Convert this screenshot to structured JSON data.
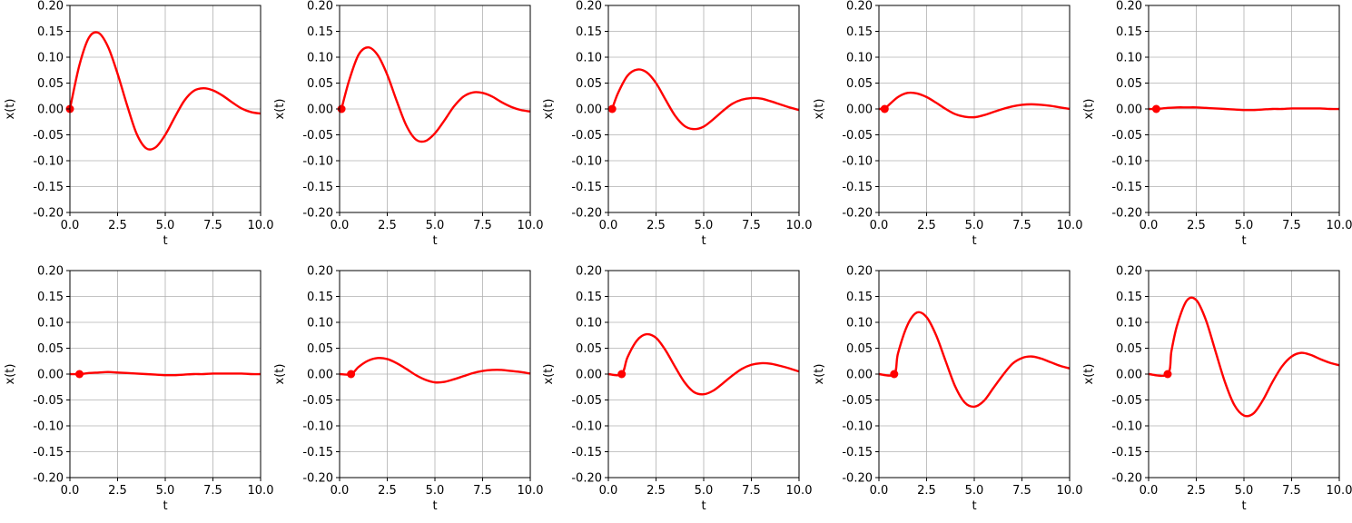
{
  "figure": {
    "background": "#ffffff",
    "line_color": "#ff0000",
    "grid_color": "#b0b0b0",
    "rows": 2,
    "cols": 5
  },
  "chart_data": [
    {
      "type": "line",
      "xlabel": "t",
      "ylabel": "x(t)",
      "xlim": [
        0,
        10
      ],
      "ylim": [
        -0.2,
        0.2
      ],
      "grid": true,
      "xticks": [
        "0.0",
        "2.5",
        "5.0",
        "7.5",
        "10.0"
      ],
      "yticks": [
        "0.20",
        "0.15",
        "0.10",
        "0.05",
        "0.00",
        "-0.05",
        "-0.10",
        "-0.15",
        "-0.20"
      ],
      "x": [
        0,
        0.5,
        1.0,
        1.5,
        2.0,
        2.5,
        3.0,
        3.5,
        4.0,
        4.5,
        5.0,
        5.5,
        6.0,
        6.5,
        7.0,
        7.5,
        8.0,
        8.5,
        9.0,
        9.5,
        10.0
      ],
      "y": [
        0.0,
        0.085,
        0.138,
        0.147,
        0.12,
        0.068,
        0.007,
        -0.048,
        -0.076,
        -0.074,
        -0.05,
        -0.016,
        0.016,
        0.035,
        0.04,
        0.036,
        0.026,
        0.013,
        0.001,
        -0.006,
        -0.009
      ],
      "marker": {
        "x": 0.0,
        "y": 0.0
      }
    },
    {
      "type": "line",
      "xlabel": "t",
      "ylabel": "x(t)",
      "xlim": [
        0,
        10
      ],
      "ylim": [
        -0.2,
        0.2
      ],
      "grid": true,
      "xticks": [
        "0.0",
        "2.5",
        "5.0",
        "7.5",
        "10.0"
      ],
      "yticks": [
        "0.20",
        "0.15",
        "0.10",
        "0.05",
        "0.00",
        "-0.05",
        "-0.10",
        "-0.15",
        "-0.20"
      ],
      "x": [
        0.1,
        0.5,
        1.0,
        1.5,
        2.0,
        2.5,
        3.0,
        3.5,
        4.0,
        4.5,
        5.0,
        5.5,
        6.0,
        6.5,
        7.0,
        7.5,
        8.0,
        8.5,
        9.0,
        9.5,
        10.0
      ],
      "y": [
        0.0,
        0.055,
        0.105,
        0.119,
        0.104,
        0.066,
        0.015,
        -0.032,
        -0.059,
        -0.062,
        -0.047,
        -0.022,
        0.005,
        0.024,
        0.032,
        0.031,
        0.024,
        0.013,
        0.004,
        -0.002,
        -0.005
      ],
      "marker": {
        "x": 0.1,
        "y": 0.0
      }
    },
    {
      "type": "line",
      "xlabel": "t",
      "ylabel": "x(t)",
      "xlim": [
        0,
        10
      ],
      "ylim": [
        -0.2,
        0.2
      ],
      "grid": true,
      "xticks": [
        "0.0",
        "2.5",
        "5.0",
        "7.5",
        "10.0"
      ],
      "yticks": [
        "0.20",
        "0.15",
        "0.10",
        "0.05",
        "0.00",
        "-0.05",
        "-0.10",
        "-0.15",
        "-0.20"
      ],
      "x": [
        0.2,
        0.5,
        1.0,
        1.5,
        2.0,
        2.5,
        3.0,
        3.5,
        4.0,
        4.5,
        5.0,
        5.5,
        6.0,
        6.5,
        7.0,
        7.5,
        8.0,
        8.5,
        9.0,
        9.5,
        10.0
      ],
      "y": [
        0.0,
        0.03,
        0.064,
        0.076,
        0.071,
        0.05,
        0.018,
        -0.013,
        -0.033,
        -0.039,
        -0.034,
        -0.02,
        -0.004,
        0.01,
        0.018,
        0.021,
        0.02,
        0.015,
        0.009,
        0.003,
        -0.002
      ],
      "marker": {
        "x": 0.2,
        "y": 0.0
      }
    },
    {
      "type": "line",
      "xlabel": "t",
      "ylabel": "x(t)",
      "xlim": [
        0,
        10
      ],
      "ylim": [
        -0.2,
        0.2
      ],
      "grid": true,
      "xticks": [
        "0.0",
        "2.5",
        "5.0",
        "7.5",
        "10.0"
      ],
      "yticks": [
        "0.20",
        "0.15",
        "0.10",
        "0.05",
        "0.00",
        "-0.05",
        "-0.10",
        "-0.15",
        "-0.20"
      ],
      "x": [
        0.3,
        0.5,
        1.0,
        1.5,
        2.0,
        2.5,
        3.0,
        3.5,
        4.0,
        4.5,
        5.0,
        5.5,
        6.0,
        6.5,
        7.0,
        7.5,
        8.0,
        8.5,
        9.0,
        9.5,
        10.0
      ],
      "y": [
        0.0,
        0.007,
        0.023,
        0.031,
        0.03,
        0.023,
        0.012,
        0.0,
        -0.01,
        -0.015,
        -0.016,
        -0.012,
        -0.006,
        0.0,
        0.005,
        0.008,
        0.009,
        0.008,
        0.006,
        0.003,
        0.0
      ],
      "marker": {
        "x": 0.3,
        "y": 0.0
      }
    },
    {
      "type": "line",
      "xlabel": "t",
      "ylabel": "x(t)",
      "xlim": [
        0,
        10
      ],
      "ylim": [
        -0.2,
        0.2
      ],
      "grid": true,
      "xticks": [
        "0.0",
        "2.5",
        "5.0",
        "7.5",
        "10.0"
      ],
      "yticks": [
        "0.20",
        "0.15",
        "0.10",
        "0.05",
        "0.00",
        "-0.05",
        "-0.10",
        "-0.15",
        "-0.20"
      ],
      "x": [
        0.0,
        0.4,
        1.0,
        1.5,
        2.0,
        2.5,
        3.0,
        3.5,
        4.0,
        4.5,
        5.0,
        5.5,
        6.0,
        6.5,
        7.0,
        7.5,
        8.0,
        8.5,
        9.0,
        9.5,
        10.0
      ],
      "y": [
        0.0,
        0.0,
        0.002,
        0.003,
        0.003,
        0.003,
        0.002,
        0.001,
        0.0,
        -0.001,
        -0.002,
        -0.002,
        -0.001,
        0.0,
        0.0,
        0.001,
        0.001,
        0.001,
        0.001,
        0.0,
        0.0
      ],
      "marker": {
        "x": 0.4,
        "y": 0.0
      }
    },
    {
      "type": "line",
      "xlabel": "t",
      "ylabel": "x(t)",
      "xlim": [
        0,
        10
      ],
      "ylim": [
        -0.2,
        0.2
      ],
      "grid": true,
      "xticks": [
        "0.0",
        "2.5",
        "5.0",
        "7.5",
        "10.0"
      ],
      "yticks": [
        "0.20",
        "0.15",
        "0.10",
        "0.05",
        "0.00",
        "-0.05",
        "-0.10",
        "-0.15",
        "-0.20"
      ],
      "x": [
        0.0,
        0.5,
        1.0,
        1.5,
        2.0,
        2.5,
        3.0,
        3.5,
        4.0,
        4.5,
        5.0,
        5.5,
        6.0,
        6.5,
        7.0,
        7.5,
        8.0,
        8.5,
        9.0,
        9.5,
        10.0
      ],
      "y": [
        0.0,
        0.0,
        0.002,
        0.003,
        0.004,
        0.003,
        0.002,
        0.001,
        0.0,
        -0.001,
        -0.002,
        -0.002,
        -0.001,
        0.0,
        0.0,
        0.001,
        0.001,
        0.001,
        0.001,
        0.0,
        0.0
      ],
      "marker": {
        "x": 0.5,
        "y": 0.0
      }
    },
    {
      "type": "line",
      "xlabel": "t",
      "ylabel": "x(t)",
      "xlim": [
        0,
        10
      ],
      "ylim": [
        -0.2,
        0.2
      ],
      "grid": true,
      "xticks": [
        "0.0",
        "2.5",
        "5.0",
        "7.5",
        "10.0"
      ],
      "yticks": [
        "0.20",
        "0.15",
        "0.10",
        "0.05",
        "0.00",
        "-0.05",
        "-0.10",
        "-0.15",
        "-0.20"
      ],
      "x": [
        0.0,
        0.6,
        1.0,
        1.5,
        2.0,
        2.5,
        3.0,
        3.5,
        4.0,
        4.5,
        5.0,
        5.5,
        6.0,
        6.5,
        7.0,
        7.5,
        8.0,
        8.5,
        9.0,
        9.5,
        10.0
      ],
      "y": [
        0.0,
        0.0,
        0.014,
        0.026,
        0.031,
        0.029,
        0.021,
        0.01,
        -0.002,
        -0.011,
        -0.016,
        -0.015,
        -0.01,
        -0.004,
        0.002,
        0.006,
        0.008,
        0.008,
        0.006,
        0.004,
        0.001
      ],
      "marker": {
        "x": 0.6,
        "y": 0.0
      }
    },
    {
      "type": "line",
      "xlabel": "t",
      "ylabel": "x(t)",
      "xlim": [
        0,
        10
      ],
      "ylim": [
        -0.2,
        0.2
      ],
      "grid": true,
      "xticks": [
        "0.0",
        "2.5",
        "5.0",
        "7.5",
        "10.0"
      ],
      "yticks": [
        "0.20",
        "0.15",
        "0.10",
        "0.05",
        "0.00",
        "-0.05",
        "-0.10",
        "-0.15",
        "-0.20"
      ],
      "x": [
        0.0,
        0.7,
        1.0,
        1.5,
        2.0,
        2.5,
        3.0,
        3.5,
        4.0,
        4.5,
        5.0,
        5.5,
        6.0,
        6.5,
        7.0,
        7.5,
        8.0,
        8.5,
        9.0,
        9.5,
        10.0
      ],
      "y": [
        0.0,
        0.0,
        0.032,
        0.065,
        0.077,
        0.07,
        0.046,
        0.014,
        -0.016,
        -0.035,
        -0.039,
        -0.032,
        -0.018,
        -0.003,
        0.01,
        0.018,
        0.021,
        0.02,
        0.016,
        0.011,
        0.005
      ],
      "marker": {
        "x": 0.7,
        "y": 0.0
      }
    },
    {
      "type": "line",
      "xlabel": "t",
      "ylabel": "x(t)",
      "xlim": [
        0,
        10
      ],
      "ylim": [
        -0.2,
        0.2
      ],
      "grid": true,
      "xticks": [
        "0.0",
        "2.5",
        "5.0",
        "7.5",
        "10.0"
      ],
      "yticks": [
        "0.20",
        "0.15",
        "0.10",
        "0.05",
        "0.00",
        "-0.05",
        "-0.10",
        "-0.15",
        "-0.20"
      ],
      "x": [
        0.0,
        0.8,
        1.0,
        1.5,
        2.0,
        2.5,
        3.0,
        3.5,
        4.0,
        4.5,
        5.0,
        5.5,
        6.0,
        6.5,
        7.0,
        7.5,
        8.0,
        8.5,
        9.0,
        9.5,
        10.0
      ],
      "y": [
        0.0,
        0.0,
        0.04,
        0.095,
        0.119,
        0.11,
        0.075,
        0.025,
        -0.024,
        -0.055,
        -0.063,
        -0.052,
        -0.027,
        -0.002,
        0.02,
        0.031,
        0.034,
        0.03,
        0.023,
        0.016,
        0.011
      ],
      "marker": {
        "x": 0.8,
        "y": 0.0
      }
    },
    {
      "type": "line",
      "xlabel": "t",
      "ylabel": "x(t)",
      "xlim": [
        0,
        10
      ],
      "ylim": [
        -0.2,
        0.2
      ],
      "grid": true,
      "xticks": [
        "0.0",
        "2.5",
        "5.0",
        "7.5",
        "10.0"
      ],
      "yticks": [
        "0.20",
        "0.15",
        "0.10",
        "0.05",
        "0.00",
        "-0.05",
        "-0.10",
        "-0.15",
        "-0.20"
      ],
      "x": [
        0.0,
        1.0,
        1.2,
        1.5,
        2.0,
        2.5,
        3.0,
        3.5,
        4.0,
        4.5,
        5.0,
        5.5,
        6.0,
        6.5,
        7.0,
        7.5,
        8.0,
        8.5,
        9.0,
        9.5,
        10.0
      ],
      "y": [
        0.0,
        0.0,
        0.045,
        0.095,
        0.142,
        0.143,
        0.105,
        0.045,
        -0.015,
        -0.06,
        -0.08,
        -0.076,
        -0.05,
        -0.015,
        0.015,
        0.034,
        0.041,
        0.037,
        0.029,
        0.022,
        0.017
      ],
      "marker": {
        "x": 1.0,
        "y": 0.0
      }
    }
  ]
}
